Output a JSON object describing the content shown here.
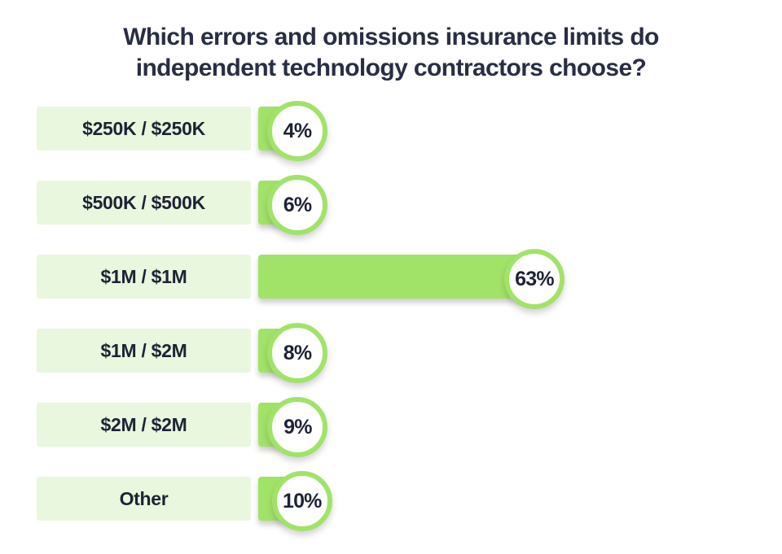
{
  "page": {
    "background": "#ffffff"
  },
  "title": "Which errors and omissions insurance limits do\nindependent technology contractors choose?",
  "colors": {
    "accent_green": "#a1e368",
    "pale_green": "#e9f7de",
    "title_text": "#282e44",
    "label_text": "#1e2235",
    "circle_fill": "#ffffff"
  },
  "chart_data": {
    "type": "bar",
    "orientation": "horizontal",
    "title": "Which errors and omissions insurance limits do independent technology contractors choose?",
    "categories": [
      "$250K / $250K",
      "$500K / $500K",
      "$1M / $1M",
      "$1M / $2M",
      "$2M / $2M",
      "Other"
    ],
    "values": [
      4,
      6,
      63,
      8,
      9,
      10
    ],
    "value_labels": [
      "4%",
      "6%",
      "63%",
      "8%",
      "9%",
      "10%"
    ],
    "unit": "%",
    "value_axis_range": [
      0,
      100
    ],
    "grid": false,
    "legend": false,
    "axes_shown": false
  }
}
